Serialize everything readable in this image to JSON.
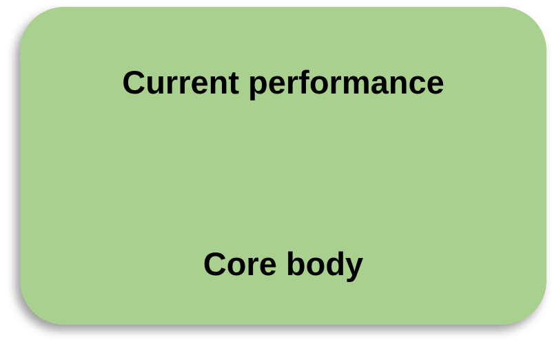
{
  "card": {
    "title": "Current performance",
    "subtitle": "Core body",
    "fill_color": "#a9d08e"
  }
}
